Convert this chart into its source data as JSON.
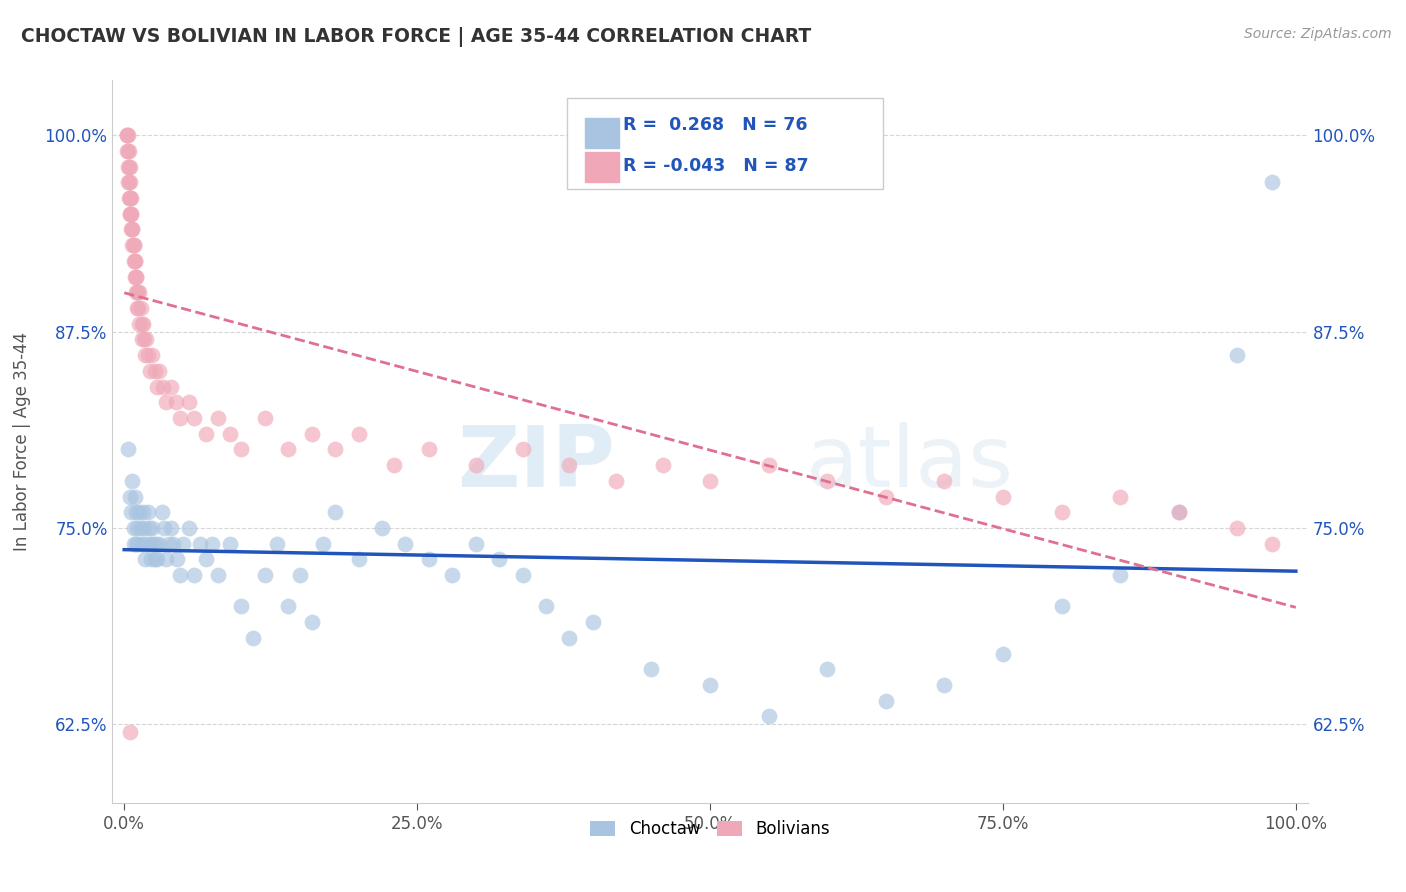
{
  "title": "CHOCTAW VS BOLIVIAN IN LABOR FORCE | AGE 35-44 CORRELATION CHART",
  "source_text": "Source: ZipAtlas.com",
  "ylabel": "In Labor Force | Age 35-44",
  "xlim": [
    -0.01,
    1.01
  ],
  "ylim": [
    0.575,
    1.035
  ],
  "xticks": [
    0.0,
    0.25,
    0.5,
    0.75,
    1.0
  ],
  "xtick_labels": [
    "0.0%",
    "25.0%",
    "50.0%",
    "75.0%",
    "100.0%"
  ],
  "yticks": [
    0.625,
    0.75,
    0.875,
    1.0
  ],
  "ytick_labels": [
    "62.5%",
    "75.0%",
    "87.5%",
    "100.0%"
  ],
  "choctaw_color": "#a8c4e0",
  "bolivian_color": "#f0a8b8",
  "choctaw_R": 0.268,
  "choctaw_N": 76,
  "bolivian_R": -0.043,
  "bolivian_N": 87,
  "choctaw_line_color": "#2255bb",
  "bolivian_line_color": "#e07090",
  "watermark_zip": "ZIP",
  "watermark_atlas": "atlas",
  "choctaw_x": [
    0.003,
    0.005,
    0.006,
    0.007,
    0.008,
    0.008,
    0.009,
    0.01,
    0.01,
    0.011,
    0.012,
    0.013,
    0.014,
    0.015,
    0.016,
    0.017,
    0.018,
    0.019,
    0.02,
    0.021,
    0.022,
    0.023,
    0.024,
    0.025,
    0.026,
    0.027,
    0.028,
    0.03,
    0.032,
    0.034,
    0.036,
    0.038,
    0.04,
    0.042,
    0.045,
    0.048,
    0.05,
    0.055,
    0.06,
    0.065,
    0.07,
    0.075,
    0.08,
    0.09,
    0.1,
    0.11,
    0.12,
    0.13,
    0.14,
    0.15,
    0.16,
    0.17,
    0.18,
    0.2,
    0.22,
    0.24,
    0.26,
    0.28,
    0.3,
    0.32,
    0.34,
    0.36,
    0.38,
    0.4,
    0.45,
    0.5,
    0.55,
    0.6,
    0.65,
    0.7,
    0.75,
    0.8,
    0.85,
    0.9,
    0.95,
    0.98
  ],
  "choctaw_y": [
    0.8,
    0.77,
    0.76,
    0.78,
    0.75,
    0.74,
    0.77,
    0.76,
    0.74,
    0.75,
    0.74,
    0.76,
    0.75,
    0.74,
    0.76,
    0.75,
    0.73,
    0.74,
    0.76,
    0.75,
    0.74,
    0.73,
    0.75,
    0.74,
    0.73,
    0.74,
    0.73,
    0.74,
    0.76,
    0.75,
    0.73,
    0.74,
    0.75,
    0.74,
    0.73,
    0.72,
    0.74,
    0.75,
    0.72,
    0.74,
    0.73,
    0.74,
    0.72,
    0.74,
    0.7,
    0.68,
    0.72,
    0.74,
    0.7,
    0.72,
    0.69,
    0.74,
    0.76,
    0.73,
    0.75,
    0.74,
    0.73,
    0.72,
    0.74,
    0.73,
    0.72,
    0.7,
    0.68,
    0.69,
    0.66,
    0.65,
    0.63,
    0.66,
    0.64,
    0.65,
    0.67,
    0.7,
    0.72,
    0.76,
    0.86,
    0.97
  ],
  "bolivian_x": [
    0.002,
    0.002,
    0.002,
    0.003,
    0.003,
    0.003,
    0.003,
    0.004,
    0.004,
    0.004,
    0.004,
    0.005,
    0.005,
    0.005,
    0.005,
    0.005,
    0.005,
    0.006,
    0.006,
    0.006,
    0.006,
    0.007,
    0.007,
    0.007,
    0.008,
    0.008,
    0.008,
    0.009,
    0.009,
    0.009,
    0.01,
    0.01,
    0.01,
    0.011,
    0.011,
    0.012,
    0.012,
    0.013,
    0.013,
    0.014,
    0.015,
    0.015,
    0.016,
    0.017,
    0.018,
    0.019,
    0.02,
    0.022,
    0.024,
    0.026,
    0.028,
    0.03,
    0.033,
    0.036,
    0.04,
    0.044,
    0.048,
    0.055,
    0.06,
    0.07,
    0.08,
    0.09,
    0.1,
    0.12,
    0.14,
    0.16,
    0.18,
    0.2,
    0.23,
    0.26,
    0.3,
    0.34,
    0.38,
    0.42,
    0.46,
    0.5,
    0.55,
    0.6,
    0.65,
    0.7,
    0.75,
    0.8,
    0.85,
    0.9,
    0.95,
    0.005,
    0.98
  ],
  "bolivian_y": [
    1.0,
    1.0,
    0.99,
    1.0,
    0.99,
    0.98,
    0.97,
    0.99,
    0.98,
    0.97,
    0.96,
    0.98,
    0.97,
    0.96,
    0.95,
    0.96,
    0.95,
    0.96,
    0.95,
    0.94,
    0.95,
    0.94,
    0.93,
    0.94,
    0.93,
    0.92,
    0.93,
    0.92,
    0.91,
    0.92,
    0.91,
    0.9,
    0.91,
    0.9,
    0.89,
    0.9,
    0.89,
    0.9,
    0.88,
    0.89,
    0.88,
    0.87,
    0.88,
    0.87,
    0.86,
    0.87,
    0.86,
    0.85,
    0.86,
    0.85,
    0.84,
    0.85,
    0.84,
    0.83,
    0.84,
    0.83,
    0.82,
    0.83,
    0.82,
    0.81,
    0.82,
    0.81,
    0.8,
    0.82,
    0.8,
    0.81,
    0.8,
    0.81,
    0.79,
    0.8,
    0.79,
    0.8,
    0.79,
    0.78,
    0.79,
    0.78,
    0.79,
    0.78,
    0.77,
    0.78,
    0.77,
    0.76,
    0.77,
    0.76,
    0.75,
    0.62,
    0.74
  ]
}
